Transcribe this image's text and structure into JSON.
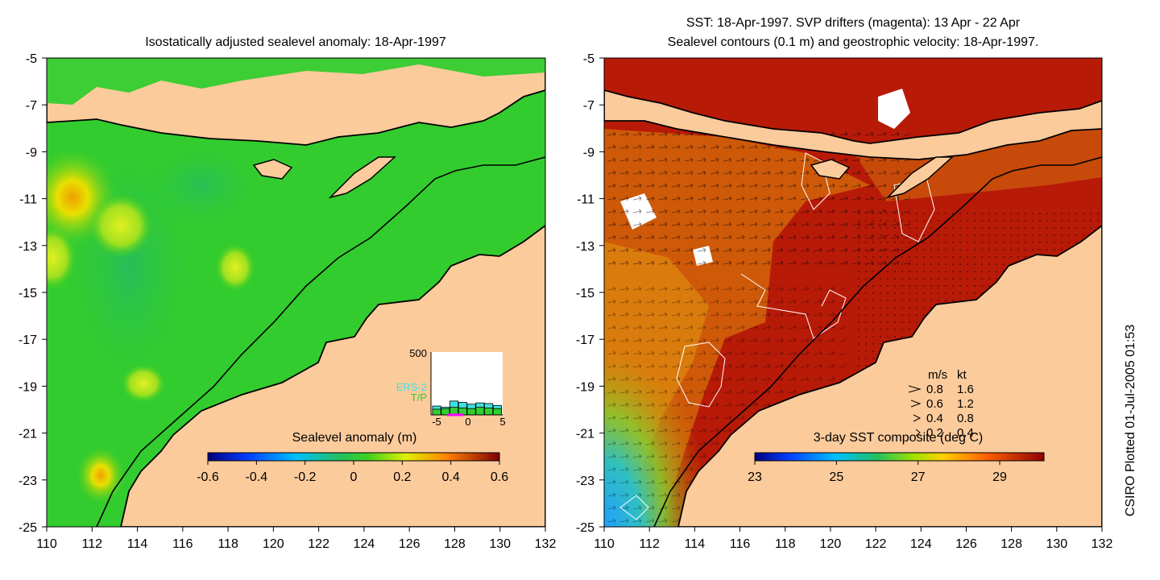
{
  "left_panel": {
    "title": "Isostatically adjusted sealevel anomaly: 18-Apr-1997",
    "colorbar": {
      "label": "Sealevel anomaly (m)",
      "ticks": [
        "-0.6",
        "-0.4",
        "-0.2",
        "0",
        "0.2",
        "0.4",
        "0.6"
      ],
      "range": [
        -0.6,
        0.6
      ]
    },
    "inset": {
      "ymax_label": "500",
      "legend": [
        "ERS-2",
        "T/P"
      ],
      "legend_colors": [
        "#40e0e0",
        "#30d030"
      ],
      "x_ticks": [
        "-5",
        "0",
        "5"
      ],
      "ers2": [
        70,
        60,
        110,
        100,
        85,
        95,
        90,
        75
      ],
      "tp": [
        45,
        50,
        60,
        55,
        50,
        60,
        55,
        50
      ]
    }
  },
  "right_panel": {
    "title_line1": "SST: 18-Apr-1997. SVP drifters (magenta): 13 Apr - 22 Apr",
    "title_line2": "Sealevel contours (0.1 m) and geostrophic velocity: 18-Apr-1997.",
    "colorbar": {
      "label": "3-day SST composite (deg C)",
      "ticks": [
        "23",
        "25",
        "27",
        "29"
      ],
      "range": [
        23,
        30
      ]
    },
    "velocity_legend": {
      "header_ms": "m/s",
      "header_kt": "kt",
      "rows": [
        {
          "ms": "0.8",
          "kt": "1.6"
        },
        {
          "ms": "0.6",
          "kt": "1.2"
        },
        {
          "ms": "0.4",
          "kt": "0.8"
        },
        {
          "ms": "0.2",
          "kt": "0.4"
        }
      ]
    }
  },
  "axes": {
    "x_ticks": [
      "110",
      "112",
      "114",
      "116",
      "118",
      "120",
      "122",
      "124",
      "126",
      "128",
      "130",
      "132"
    ],
    "y_ticks": [
      "-5",
      "-7",
      "-9",
      "-11",
      "-13",
      "-15",
      "-17",
      "-19",
      "-21",
      "-23",
      "-25"
    ]
  },
  "credit": "CSIRO Plotted 01-Jul-2005 01:53",
  "colors": {
    "land": "#fccb9c",
    "sea_left": "#30cc30",
    "sea_right": "#b81a08"
  }
}
